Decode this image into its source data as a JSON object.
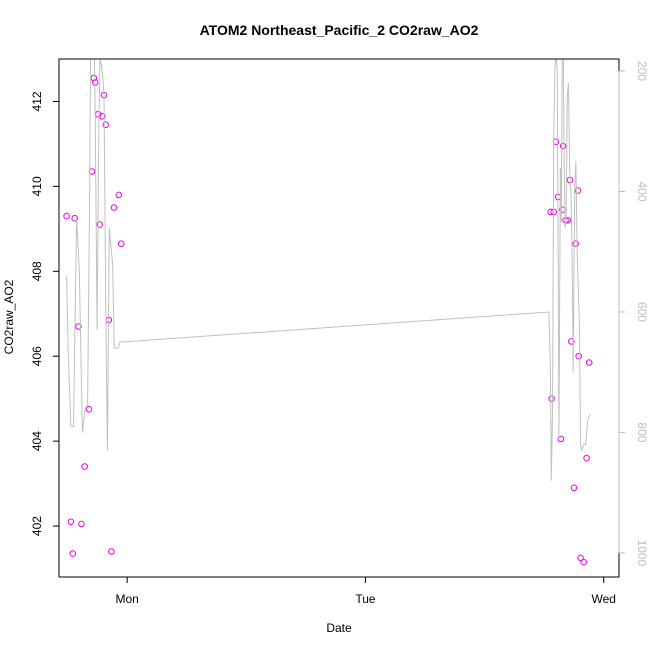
{
  "chart_data": {
    "type": "scatter",
    "title": "ATOM2 Northeast_Pacific_2 CO2raw_AO2",
    "xlabel": "Date",
    "ylabel": "CO2raw_AO2",
    "x_ticks": [
      {
        "label": "Mon",
        "value": 0
      },
      {
        "label": "Tue",
        "value": 1
      },
      {
        "label": "Wed",
        "value": 2
      }
    ],
    "xlim": [
      -0.286,
      2.064
    ],
    "ylim": [
      400.8,
      413.0
    ],
    "y_ticks": [
      402,
      404,
      406,
      408,
      410,
      412
    ],
    "y2lim": [
      1040,
      180
    ],
    "y2_ticks": [
      200,
      400,
      600,
      800,
      1000
    ],
    "grid": false,
    "legend": "none",
    "colors": {
      "points": "#ee00ee",
      "line": "#c0c0c0",
      "right_axis": "#bdbdbd"
    },
    "series": [
      {
        "kind": "points",
        "x": [
          -0.254,
          -0.236,
          -0.228,
          -0.22,
          -0.204,
          -0.192,
          -0.178,
          -0.16,
          -0.147,
          -0.14,
          -0.134,
          -0.122,
          -0.115,
          -0.104,
          -0.097,
          -0.09,
          -0.077,
          -0.066,
          -0.055,
          -0.035,
          -0.025,
          1.777,
          1.781,
          1.79,
          1.8,
          1.808,
          1.82,
          1.826,
          1.83,
          1.84,
          1.849,
          1.858,
          1.864,
          1.875,
          1.882,
          1.892,
          1.895,
          1.903,
          1.916,
          1.928,
          1.939
        ],
        "y": [
          409.3,
          402.1,
          401.35,
          409.25,
          406.7,
          402.05,
          403.4,
          404.75,
          410.35,
          412.55,
          412.45,
          411.7,
          409.1,
          411.65,
          412.15,
          411.45,
          406.85,
          401.4,
          409.5,
          409.8,
          408.65,
          409.4,
          405.0,
          409.4,
          411.05,
          409.75,
          404.05,
          409.45,
          410.95,
          409.2,
          409.2,
          410.15,
          406.35,
          402.9,
          408.65,
          409.9,
          406.0,
          401.25,
          401.15,
          403.6,
          405.85
        ]
      },
      {
        "kind": "line",
        "x": [
          -0.254,
          -0.248,
          -0.236,
          -0.225,
          -0.212,
          -0.201,
          -0.188,
          -0.176,
          -0.166,
          -0.158,
          -0.152,
          -0.146,
          -0.14,
          -0.134,
          -0.126,
          -0.119,
          -0.114,
          -0.108,
          -0.102,
          -0.097,
          -0.09,
          -0.083,
          -0.075,
          -0.068,
          -0.061,
          -0.054,
          -0.046,
          -0.038,
          -0.03,
          1.77,
          1.776,
          1.78,
          1.785,
          1.79,
          1.795,
          1.8,
          1.805,
          1.812,
          1.818,
          1.822,
          1.826,
          1.83,
          1.834,
          1.838,
          1.842,
          1.847,
          1.852,
          1.857,
          1.862,
          1.867,
          1.872,
          1.878,
          1.883,
          1.888,
          1.893,
          1.898,
          1.903,
          1.908,
          1.916,
          1.924,
          1.933,
          1.942
        ],
        "y": [
          540,
          660,
          790,
          790,
          445,
          530,
          800,
          760,
          755,
          430,
          120,
          180,
          110,
          270,
          630,
          300,
          180,
          190,
          210,
          240,
          580,
          830,
          460,
          490,
          520,
          660,
          660,
          660,
          650,
          600,
          690,
          880,
          770,
          310,
          200,
          170,
          200,
          810,
          360,
          450,
          150,
          140,
          360,
          460,
          450,
          240,
          220,
          370,
          400,
          500,
          700,
          390,
          350,
          500,
          560,
          620,
          820,
          830,
          820,
          820,
          780,
          770
        ]
      }
    ]
  }
}
